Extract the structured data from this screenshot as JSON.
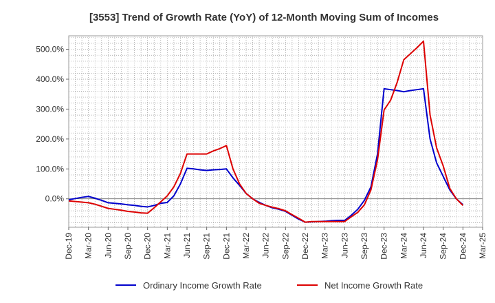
{
  "chart_data": {
    "type": "line",
    "title": "[3553]  Trend of Growth Rate (YoY) of 12-Month Moving Sum of Incomes",
    "xlabel": "",
    "ylabel": "",
    "x_tick_labels": [
      "Dec-19",
      "Mar-20",
      "Jun-20",
      "Sep-20",
      "Dec-20",
      "Mar-21",
      "Jun-21",
      "Sep-21",
      "Dec-21",
      "Mar-22",
      "Jun-22",
      "Sep-22",
      "Dec-22",
      "Mar-23",
      "Jun-23",
      "Sep-23",
      "Dec-23",
      "Mar-24",
      "Jun-24",
      "Sep-24",
      "Dec-24",
      "Mar-25"
    ],
    "y_tick_values": [
      0,
      100,
      200,
      300,
      400,
      500
    ],
    "y_tick_labels": [
      "0.0%",
      "100.0%",
      "200.0%",
      "300.0%",
      "400.0%",
      "500.0%"
    ],
    "ylim": [
      -95,
      545
    ],
    "grid": true,
    "legend_position": "bottom",
    "x": [
      "2019-12",
      "2020-01",
      "2020-02",
      "2020-03",
      "2020-04",
      "2020-05",
      "2020-06",
      "2020-07",
      "2020-08",
      "2020-09",
      "2020-10",
      "2020-11",
      "2020-12",
      "2021-01",
      "2021-02",
      "2021-03",
      "2021-04",
      "2021-05",
      "2021-06",
      "2021-07",
      "2021-08",
      "2021-09",
      "2021-10",
      "2021-11",
      "2021-12",
      "2022-01",
      "2022-02",
      "2022-03",
      "2022-04",
      "2022-05",
      "2022-06",
      "2022-07",
      "2022-08",
      "2022-09",
      "2022-10",
      "2022-11",
      "2022-12",
      "2023-01",
      "2023-02",
      "2023-03",
      "2023-04",
      "2023-05",
      "2023-06",
      "2023-07",
      "2023-08",
      "2023-09",
      "2023-10",
      "2023-11",
      "2023-12",
      "2024-01",
      "2024-02",
      "2024-03",
      "2024-04",
      "2024-05",
      "2024-06",
      "2024-07",
      "2024-08",
      "2024-09",
      "2024-10",
      "2024-11",
      "2024-12"
    ],
    "series": [
      {
        "name": "Ordinary Income Growth Rate",
        "color": "#0000cc",
        "values": [
          -3,
          1,
          5,
          8,
          2,
          -5,
          -13,
          -15,
          -17,
          -20,
          -22,
          -25,
          -27,
          -22,
          -15,
          -12,
          10,
          50,
          102,
          100,
          97,
          95,
          97,
          98,
          100,
          70,
          45,
          18,
          0,
          -12,
          -22,
          -30,
          -35,
          -42,
          -55,
          -68,
          -78,
          -77,
          -76,
          -75,
          -73,
          -72,
          -72,
          -55,
          -35,
          -5,
          40,
          150,
          368,
          365,
          362,
          358,
          362,
          365,
          368,
          200,
          120,
          75,
          30,
          0,
          -20
        ]
      },
      {
        "name": "Net Income Growth Rate",
        "color": "#dd0000",
        "values": [
          -7,
          -9,
          -11,
          -13,
          -18,
          -25,
          -32,
          -35,
          -38,
          -42,
          -44,
          -47,
          -48,
          -30,
          -10,
          10,
          40,
          85,
          150,
          150,
          150,
          150,
          160,
          168,
          178,
          100,
          50,
          18,
          0,
          -15,
          -22,
          -28,
          -33,
          -40,
          -53,
          -65,
          -78,
          -76,
          -76,
          -76,
          -76,
          -76,
          -76,
          -60,
          -45,
          -20,
          30,
          130,
          297,
          330,
          390,
          465,
          485,
          505,
          527,
          280,
          170,
          110,
          35,
          0,
          -22
        ]
      }
    ]
  }
}
